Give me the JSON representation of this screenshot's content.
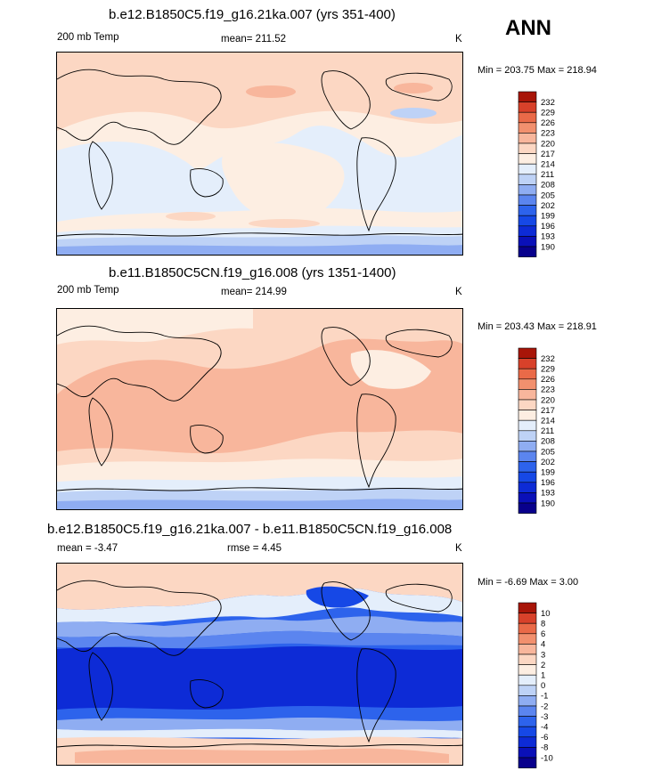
{
  "season": "ANN",
  "units": "K",
  "variable": "200 mb Temp",
  "chart_data": [
    {
      "type": "heatmap",
      "title": "b.e12.B1850C5.f19_g16.21ka.007 (yrs 351-400)",
      "left_label": "200 mb Temp",
      "center_label": "mean= 211.52",
      "right_label": "K",
      "mean": 211.52,
      "min": 203.75,
      "max": 218.94,
      "minmax_label": "Min = 203.75 Max = 218.94",
      "colorbar_levels": [
        "190",
        "193",
        "196",
        "199",
        "202",
        "205",
        "208",
        "211",
        "214",
        "217",
        "220",
        "223",
        "226",
        "229",
        "232"
      ],
      "colors": [
        "#08008c",
        "#0a10b8",
        "#0d2bd6",
        "#1648e6",
        "#2d63ec",
        "#5b85ef",
        "#8fadf2",
        "#bed2f6",
        "#e4eefb",
        "#fdeee2",
        "#fcd7c3",
        "#f8b69c",
        "#f2906e",
        "#ea6a48",
        "#d8412a",
        "#a81508"
      ]
    },
    {
      "type": "heatmap",
      "title": "b.e11.B1850C5CN.f19_g16.008 (yrs 1351-1400)",
      "left_label": "200 mb Temp",
      "center_label": "mean= 214.99",
      "right_label": "K",
      "mean": 214.99,
      "min": 203.43,
      "max": 218.91,
      "minmax_label": "Min = 203.43 Max = 218.91",
      "colorbar_levels": [
        "190",
        "193",
        "196",
        "199",
        "202",
        "205",
        "208",
        "211",
        "214",
        "217",
        "220",
        "223",
        "226",
        "229",
        "232"
      ],
      "colors": [
        "#08008c",
        "#0a10b8",
        "#0d2bd6",
        "#1648e6",
        "#2d63ec",
        "#5b85ef",
        "#8fadf2",
        "#bed2f6",
        "#e4eefb",
        "#fdeee2",
        "#fcd7c3",
        "#f8b69c",
        "#f2906e",
        "#ea6a48",
        "#d8412a",
        "#a81508"
      ]
    },
    {
      "type": "heatmap",
      "title": "b.e12.B1850C5.f19_g16.21ka.007 - b.e11.B1850C5CN.f19_g16.008",
      "left_label": "mean =  -3.47",
      "center_label": "rmse =   4.45",
      "right_label": "K",
      "mean": -3.47,
      "rmse": 4.45,
      "min": -6.69,
      "max": 3.0,
      "minmax_label": "Min =  -6.69 Max =   3.00",
      "colorbar_levels": [
        "-10",
        "-8",
        "-6",
        "-4",
        "-3",
        "-2",
        "-1",
        "0",
        "1",
        "2",
        "3",
        "4",
        "6",
        "8",
        "10"
      ],
      "colors": [
        "#08008c",
        "#0a10b8",
        "#0d2bd6",
        "#1648e6",
        "#2d63ec",
        "#5b85ef",
        "#8fadf2",
        "#bed2f6",
        "#e4eefb",
        "#fdeee2",
        "#fcd7c3",
        "#f8b69c",
        "#f2906e",
        "#ea6a48",
        "#d8412a",
        "#a81508"
      ]
    }
  ]
}
